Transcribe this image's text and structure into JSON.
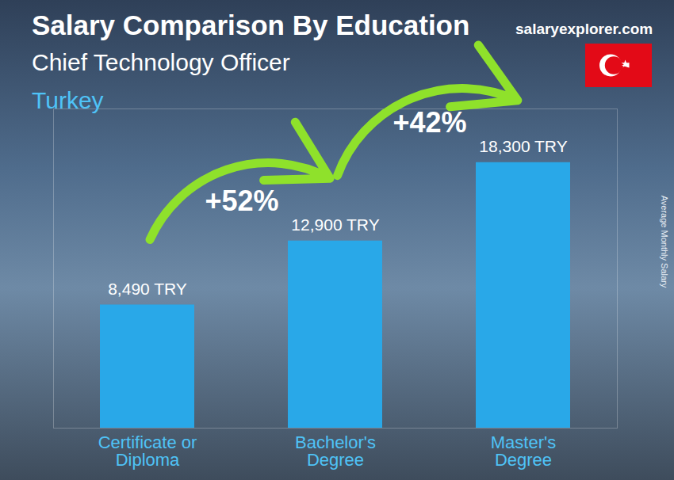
{
  "chart_data": {
    "type": "bar",
    "title": "Salary Comparison By Education",
    "subtitle": "Chief Technology Officer",
    "country": "Turkey",
    "source": "salaryexplorer.com",
    "y_label": "Average Monthly Salary",
    "categories": [
      "Certificate or Diploma",
      "Bachelor's Degree",
      "Master's Degree"
    ],
    "values": [
      8490,
      12900,
      18300
    ],
    "value_labels": [
      "8,490 TRY",
      "12,900 TRY",
      "18,300 TRY"
    ],
    "annotations": [
      "+52%",
      "+42%"
    ],
    "color": "#29a8e8",
    "ylim": [
      0,
      22000
    ],
    "yticks": [],
    "data_labels": true,
    "tick_labels": "x"
  }
}
